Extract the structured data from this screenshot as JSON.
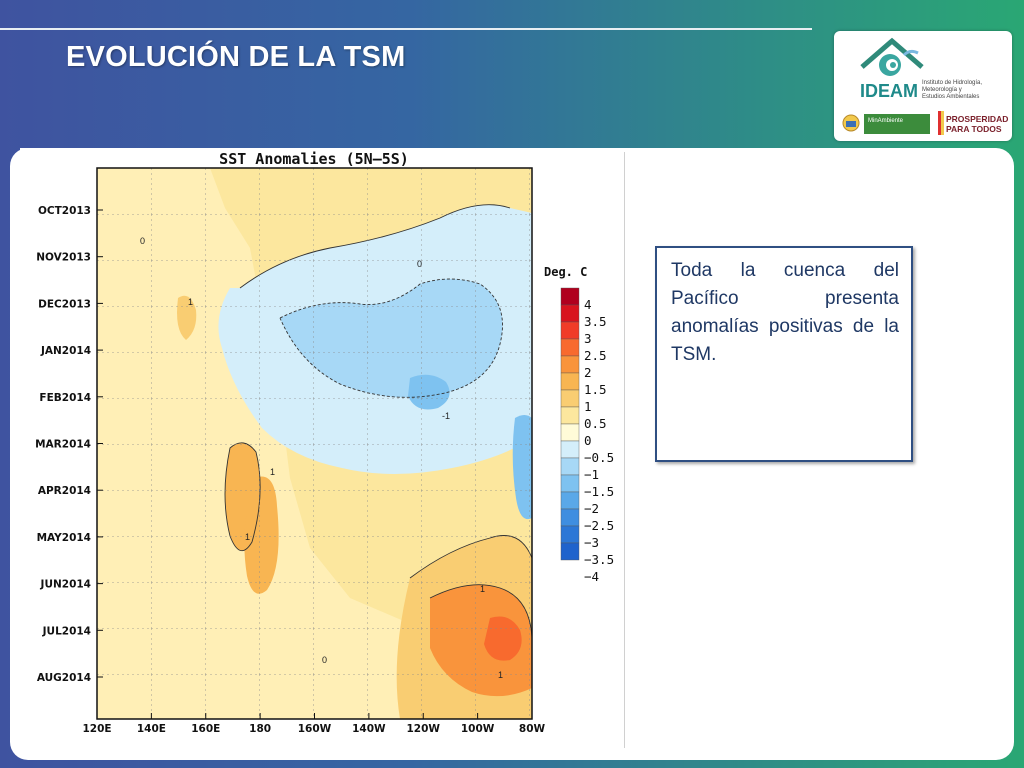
{
  "slide": {
    "title": "EVOLUCIÓN DE LA TSM",
    "note": "Toda la cuenca del Pacífico presenta anomalías positivas de la TSM."
  },
  "logo": {
    "brand": "IDEAM",
    "institute_lines": [
      "Instituto de Hidrología,",
      "Meteorología y",
      "Estudios Ambientales"
    ],
    "ministry": "MinAmbiente",
    "slogan_lines": [
      "PROSPERIDAD",
      "PARA TODOS"
    ]
  },
  "chart_data": {
    "type": "heatmap",
    "title": "SST Anomalies (5N–5S)",
    "x_tick_labels": [
      "120E",
      "140E",
      "160E",
      "180",
      "160W",
      "140W",
      "120W",
      "100W",
      "80W"
    ],
    "y_tick_labels": [
      "OCT2013",
      "NOV2013",
      "DEC2013",
      "JAN2014",
      "FEB2014",
      "MAR2014",
      "APR2014",
      "MAY2014",
      "JUN2014",
      "JUL2014",
      "AUG2014"
    ],
    "colorbar": {
      "title": "Deg. C",
      "labels": [
        "4",
        "3.5",
        "3",
        "2.5",
        "2",
        "1.5",
        "1",
        "0.5",
        "0",
        "−0.5",
        "−1",
        "−1.5",
        "−2",
        "−2.5",
        "−3",
        "−3.5",
        "−4"
      ],
      "colors": [
        "#b0001e",
        "#d8141e",
        "#f03c28",
        "#f86a2e",
        "#f9943c",
        "#f8b552",
        "#f9cd72",
        "#fce79e",
        "#fffbd8",
        "#d4eefa",
        "#a7d8f6",
        "#7ec2f0",
        "#5aa8e8",
        "#3f8ee0",
        "#2c77d6",
        "#1f63cc"
      ]
    },
    "contour_labels": [
      "0",
      "1",
      "-1"
    ],
    "regions": [
      {
        "name": "western warm band",
        "anomaly_range": [
          0,
          1
        ]
      },
      {
        "name": "central cool area",
        "period": "OCT2013–APR2014",
        "anomaly_range": [
          -1,
          0
        ]
      },
      {
        "name": "eastern warm area",
        "period": "MAY2014–AUG2014",
        "anomaly_range": [
          1,
          2
        ]
      }
    ]
  }
}
